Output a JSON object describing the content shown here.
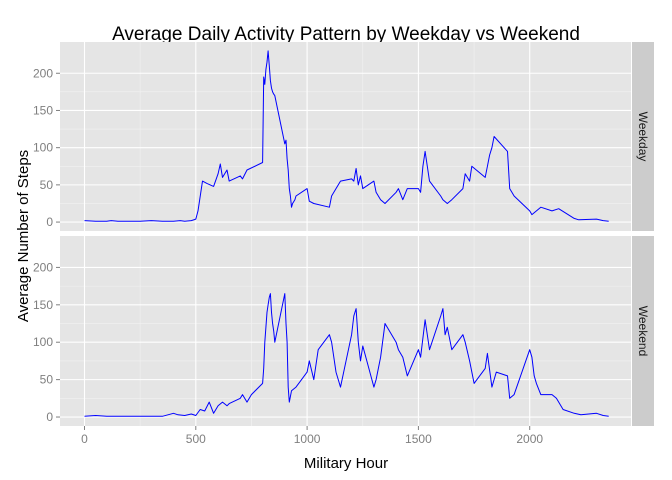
{
  "chart_data": {
    "type": "line",
    "title": "Average Daily Activity Pattern by Weekday vs Weekend",
    "xlabel": "Military Hour",
    "ylabel": "Average Number of Steps",
    "xlim": [
      -110,
      2455
    ],
    "ylim": [
      -12,
      242
    ],
    "x_ticks": [
      0,
      500,
      1000,
      1500,
      2000
    ],
    "x_tick_labels": [
      "0",
      "500",
      "1000",
      "1500",
      "2000"
    ],
    "y_ticks": [
      0,
      50,
      100,
      150,
      200
    ],
    "y_tick_labels": [
      "0",
      "50",
      "100",
      "150",
      "200"
    ],
    "grid": true,
    "line_color": "#0000ff",
    "panel_color": "#e5e5e5",
    "strip_color": "#cccccc",
    "panels": [
      {
        "label": "Weekday",
        "x": [
          0,
          50,
          100,
          120,
          150,
          200,
          250,
          300,
          350,
          400,
          430,
          450,
          480,
          500,
          510,
          530,
          550,
          580,
          600,
          610,
          620,
          640,
          650,
          700,
          710,
          730,
          800,
          805,
          810,
          815,
          820,
          825,
          830,
          835,
          840,
          845,
          850,
          855,
          900,
          905,
          910,
          915,
          920,
          925,
          930,
          935,
          945,
          950,
          1000,
          1010,
          1030,
          1100,
          1110,
          1130,
          1150,
          1200,
          1210,
          1220,
          1230,
          1240,
          1250,
          1300,
          1310,
          1330,
          1350,
          1400,
          1410,
          1430,
          1450,
          1500,
          1510,
          1520,
          1530,
          1550,
          1600,
          1610,
          1630,
          1650,
          1700,
          1710,
          1730,
          1740,
          1800,
          1810,
          1820,
          1830,
          1840,
          1900,
          1910,
          1920,
          1930,
          2000,
          2010,
          2050,
          2100,
          2130,
          2200,
          2220,
          2300,
          2330,
          2355
        ],
        "y": [
          2,
          1,
          1,
          2,
          1,
          1,
          1,
          2,
          1,
          1,
          2,
          1,
          2,
          4,
          15,
          55,
          52,
          48,
          65,
          78,
          60,
          70,
          55,
          62,
          58,
          70,
          80,
          195,
          185,
          205,
          215,
          230,
          210,
          190,
          180,
          175,
          172,
          170,
          105,
          110,
          85,
          70,
          45,
          35,
          20,
          25,
          30,
          35,
          45,
          28,
          25,
          20,
          35,
          45,
          55,
          58,
          55,
          72,
          50,
          62,
          45,
          55,
          40,
          30,
          25,
          40,
          45,
          30,
          45,
          45,
          40,
          75,
          95,
          55,
          35,
          30,
          25,
          30,
          45,
          65,
          55,
          75,
          60,
          75,
          90,
          100,
          115,
          95,
          45,
          40,
          35,
          15,
          10,
          20,
          15,
          18,
          5,
          3,
          4,
          2,
          1
        ]
      },
      {
        "label": "Weekend",
        "x": [
          0,
          50,
          100,
          150,
          200,
          250,
          300,
          350,
          400,
          420,
          450,
          480,
          500,
          520,
          540,
          560,
          580,
          600,
          620,
          640,
          650,
          700,
          710,
          730,
          750,
          800,
          805,
          810,
          815,
          820,
          825,
          830,
          835,
          840,
          845,
          850,
          855,
          900,
          905,
          910,
          915,
          920,
          930,
          950,
          1000,
          1010,
          1030,
          1050,
          1100,
          1110,
          1130,
          1150,
          1200,
          1210,
          1220,
          1230,
          1240,
          1250,
          1300,
          1310,
          1330,
          1350,
          1400,
          1410,
          1430,
          1450,
          1500,
          1510,
          1530,
          1550,
          1600,
          1610,
          1620,
          1630,
          1650,
          1700,
          1710,
          1730,
          1750,
          1800,
          1810,
          1830,
          1850,
          1900,
          1910,
          1930,
          2000,
          2010,
          2020,
          2030,
          2050,
          2100,
          2120,
          2150,
          2200,
          2230,
          2300,
          2330,
          2355
        ],
        "y": [
          1,
          2,
          1,
          1,
          1,
          1,
          1,
          1,
          5,
          3,
          2,
          4,
          2,
          10,
          8,
          20,
          5,
          15,
          20,
          15,
          18,
          25,
          30,
          20,
          30,
          45,
          65,
          100,
          120,
          140,
          150,
          160,
          165,
          140,
          125,
          115,
          100,
          165,
          125,
          100,
          40,
          20,
          35,
          40,
          60,
          75,
          50,
          90,
          110,
          100,
          60,
          40,
          110,
          135,
          145,
          100,
          75,
          95,
          40,
          50,
          80,
          125,
          100,
          90,
          80,
          55,
          90,
          80,
          130,
          90,
          135,
          145,
          110,
          120,
          90,
          110,
          100,
          75,
          45,
          65,
          85,
          40,
          60,
          55,
          25,
          30,
          90,
          80,
          55,
          45,
          30,
          30,
          25,
          10,
          5,
          3,
          5,
          2,
          1
        ]
      }
    ]
  }
}
